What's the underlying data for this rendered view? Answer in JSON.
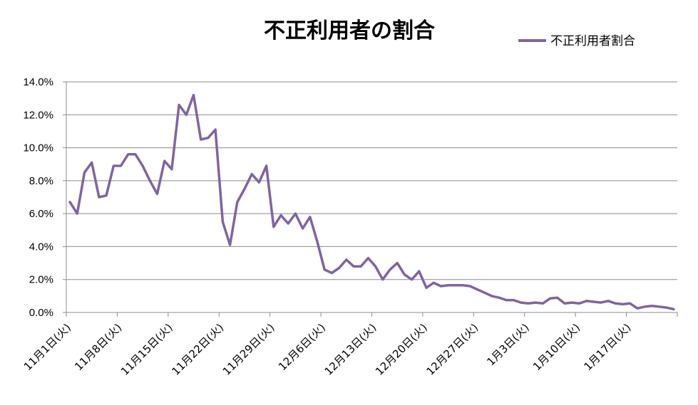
{
  "chart_data": {
    "type": "line",
    "title": "不正利用者の割合",
    "xlabel": "",
    "ylabel": "",
    "ylim": [
      0,
      0.14
    ],
    "y_ticks": [
      "0.0%",
      "2.0%",
      "4.0%",
      "6.0%",
      "8.0%",
      "10.0%",
      "12.0%",
      "14.0%"
    ],
    "x_tick_labels": [
      "11月1日(火)",
      "11月8日(火)",
      "11月15日(火)",
      "11月22日(火)",
      "11月29日(火)",
      "12月6日(火)",
      "12月13日(火)",
      "12月20日(火)",
      "12月27日(火)",
      "1月3日(火)",
      "1月10日(火)",
      "1月17日(火)"
    ],
    "grid": true,
    "legend_position": "top-right",
    "series_color": "#8064a2",
    "series": [
      {
        "name": "不正利用者割合",
        "values": [
          0.067,
          0.06,
          0.085,
          0.091,
          0.07,
          0.071,
          0.089,
          0.089,
          0.096,
          0.096,
          0.089,
          0.08,
          0.072,
          0.092,
          0.087,
          0.126,
          0.12,
          0.132,
          0.105,
          0.106,
          0.111,
          0.055,
          0.041,
          0.067,
          0.075,
          0.084,
          0.079,
          0.089,
          0.052,
          0.059,
          0.054,
          0.06,
          0.051,
          0.058,
          0.043,
          0.026,
          0.024,
          0.027,
          0.032,
          0.028,
          0.028,
          0.033,
          0.028,
          0.02,
          0.026,
          0.03,
          0.023,
          0.02,
          0.025,
          0.015,
          0.018,
          0.016,
          0.0165,
          0.0165,
          0.0165,
          0.016,
          0.014,
          0.012,
          0.01,
          0.009,
          0.0075,
          0.0075,
          0.006,
          0.0055,
          0.006,
          0.0055,
          0.0085,
          0.009,
          0.0055,
          0.006,
          0.0055,
          0.007,
          0.0065,
          0.006,
          0.007,
          0.0055,
          0.005,
          0.0055,
          0.0025,
          0.0035,
          0.004,
          0.0035,
          0.003,
          0.002
        ]
      }
    ]
  }
}
